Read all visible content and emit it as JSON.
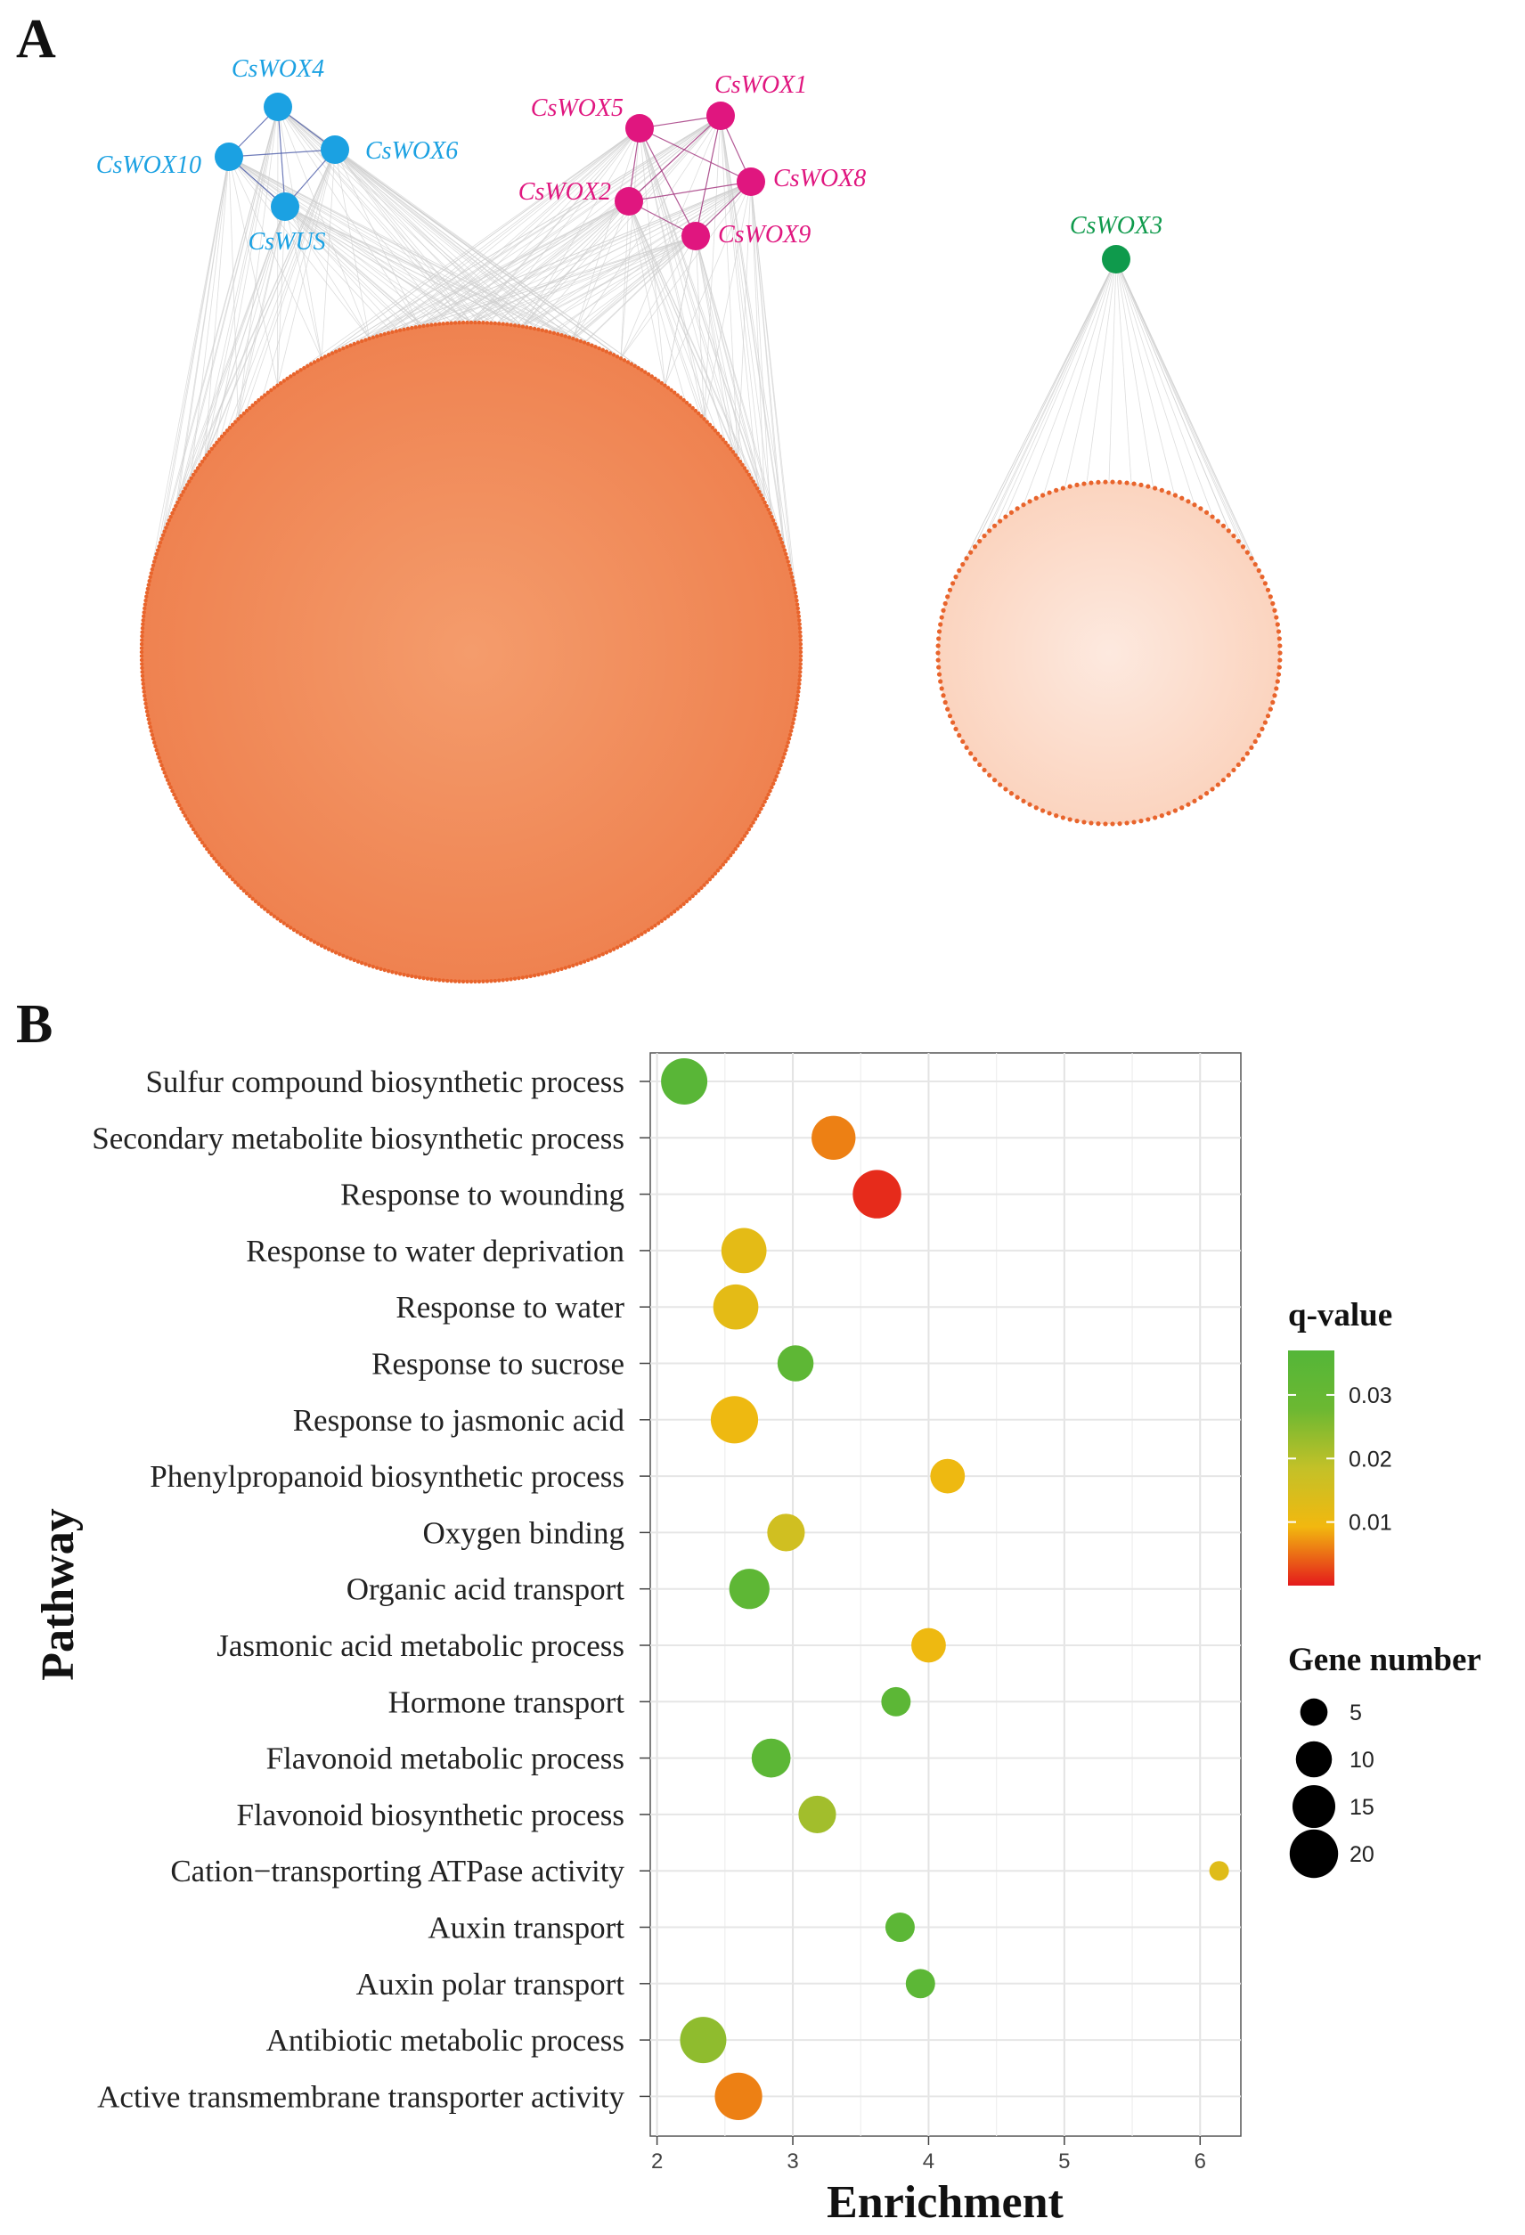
{
  "panels": {
    "a_letter": "A",
    "b_letter": "B"
  },
  "network": {
    "genes": [
      {
        "id": "CsWOX4",
        "label": "CsWOX4",
        "group": "blue"
      },
      {
        "id": "CsWOX10",
        "label": "CsWOX10",
        "group": "blue"
      },
      {
        "id": "CsWOX6",
        "label": "CsWOX6",
        "group": "blue"
      },
      {
        "id": "CsWUS",
        "label": "CsWUS",
        "group": "blue"
      },
      {
        "id": "CsWOX5",
        "label": "CsWOX5",
        "group": "pink"
      },
      {
        "id": "CsWOX1",
        "label": "CsWOX1",
        "group": "pink"
      },
      {
        "id": "CsWOX8",
        "label": "CsWOX8",
        "group": "pink"
      },
      {
        "id": "CsWOX2",
        "label": "CsWOX2",
        "group": "pink"
      },
      {
        "id": "CsWOX9",
        "label": "CsWOX9",
        "group": "pink"
      },
      {
        "id": "CsWOX3",
        "label": "CsWOX3",
        "group": "green"
      }
    ],
    "colors": {
      "blue": "#1ba1e2",
      "pink": "#e0167f",
      "green": "#0f9a4c",
      "target_dense": "#f08f5e",
      "target_light": "#fde3d6",
      "target_dot": "#e8642c",
      "edge": "#cfcfcf"
    }
  },
  "chart_data": {
    "type": "scatter",
    "xlabel": "Enrichment",
    "ylabel": "Pathway",
    "xlim": [
      1.95,
      6.3
    ],
    "x_ticks": [
      2,
      3,
      4,
      5,
      6
    ],
    "grid": true,
    "categories": [
      "Sulfur compound biosynthetic process",
      "Secondary metabolite biosynthetic process",
      "Response to wounding",
      "Response to water deprivation",
      "Response to water",
      "Response to sucrose",
      "Response to jasmonic acid",
      "Phenylpropanoid biosynthetic process",
      "Oxygen binding",
      "Organic acid transport",
      "Jasmonic acid metabolic process",
      "Hormone transport",
      "Flavonoid metabolic process",
      "Flavonoid biosynthetic process",
      "Cation−transporting ATPase activity",
      "Auxin transport",
      "Auxin polar transport",
      "Antibiotic metabolic process",
      "Active transmembrane transporter activity"
    ],
    "points": [
      {
        "pathway": "Sulfur compound biosynthetic process",
        "enrichment": 2.2,
        "gene_number": 18,
        "q_value": 0.035
      },
      {
        "pathway": "Secondary metabolite biosynthetic process",
        "enrichment": 3.3,
        "gene_number": 16,
        "q_value": 0.006
      },
      {
        "pathway": "Response to wounding",
        "enrichment": 3.62,
        "gene_number": 20,
        "q_value": 0.001
      },
      {
        "pathway": "Response to water deprivation",
        "enrichment": 2.64,
        "gene_number": 17,
        "q_value": 0.012
      },
      {
        "pathway": "Response to water",
        "enrichment": 2.58,
        "gene_number": 17,
        "q_value": 0.012
      },
      {
        "pathway": "Response to sucrose",
        "enrichment": 3.02,
        "gene_number": 10,
        "q_value": 0.033
      },
      {
        "pathway": "Response to jasmonic acid",
        "enrichment": 2.57,
        "gene_number": 19,
        "q_value": 0.01
      },
      {
        "pathway": "Phenylpropanoid biosynthetic process",
        "enrichment": 4.14,
        "gene_number": 9,
        "q_value": 0.01
      },
      {
        "pathway": "Oxygen binding",
        "enrichment": 2.95,
        "gene_number": 11,
        "q_value": 0.016
      },
      {
        "pathway": "Organic acid transport",
        "enrichment": 2.68,
        "gene_number": 13,
        "q_value": 0.033
      },
      {
        "pathway": "Jasmonic acid metabolic process",
        "enrichment": 4.0,
        "gene_number": 9,
        "q_value": 0.01
      },
      {
        "pathway": "Hormone transport",
        "enrichment": 3.76,
        "gene_number": 6,
        "q_value": 0.034
      },
      {
        "pathway": "Flavonoid metabolic process",
        "enrichment": 2.84,
        "gene_number": 12,
        "q_value": 0.034
      },
      {
        "pathway": "Flavonoid biosynthetic process",
        "enrichment": 3.18,
        "gene_number": 11,
        "q_value": 0.022
      },
      {
        "pathway": "Cation−transporting ATPase activity",
        "enrichment": 6.14,
        "gene_number": 2,
        "q_value": 0.013
      },
      {
        "pathway": "Auxin transport",
        "enrichment": 3.79,
        "gene_number": 6,
        "q_value": 0.034
      },
      {
        "pathway": "Auxin polar transport",
        "enrichment": 3.94,
        "gene_number": 6,
        "q_value": 0.034
      },
      {
        "pathway": "Antibiotic metabolic process",
        "enrichment": 2.34,
        "gene_number": 18,
        "q_value": 0.024
      },
      {
        "pathway": "Active transmembrane transporter activity",
        "enrichment": 2.6,
        "gene_number": 19,
        "q_value": 0.006
      }
    ],
    "color_legend": {
      "title": "q-value",
      "ticks": [
        {
          "label": "0.03",
          "value": 0.03
        },
        {
          "label": "0.02",
          "value": 0.02
        },
        {
          "label": "0.01",
          "value": 0.01
        }
      ],
      "range": [
        0.0,
        0.037
      ],
      "colors": [
        "#e41a1c",
        "#f2b80f",
        "#c3c128",
        "#6cb832",
        "#54b638"
      ]
    },
    "size_legend": {
      "title": "Gene number",
      "entries": [
        {
          "label": "5",
          "value": 5
        },
        {
          "label": "10",
          "value": 10
        },
        {
          "label": "15",
          "value": 15
        },
        {
          "label": "20",
          "value": 20
        }
      ]
    }
  }
}
